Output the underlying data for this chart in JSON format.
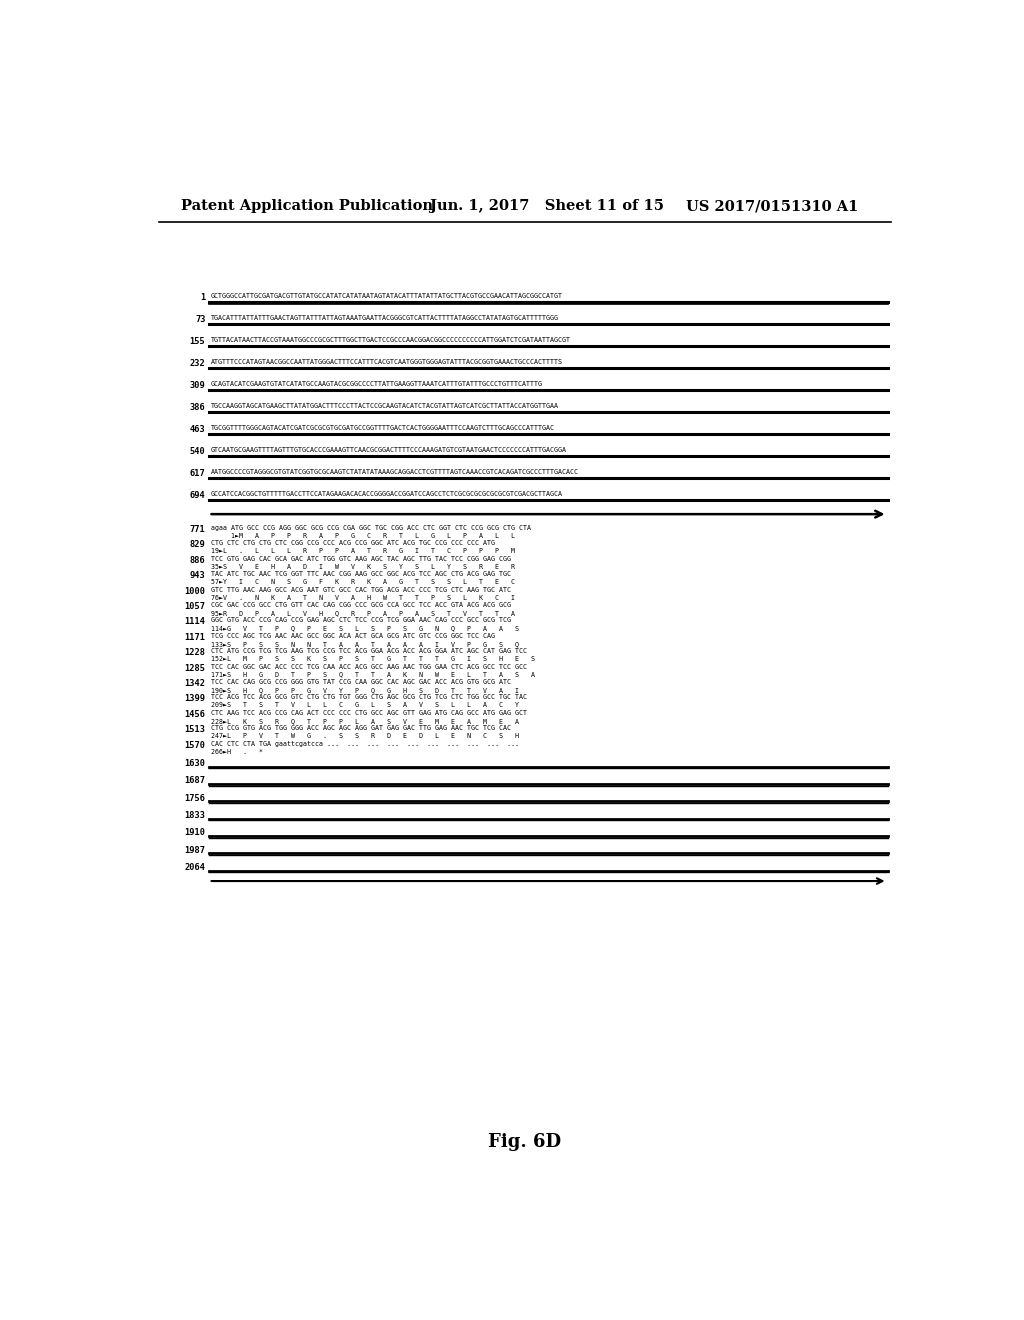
{
  "header_left": "Patent Application Publication",
  "header_center": "Jun. 1, 2017   Sheet 11 of 15",
  "header_right": "US 2017/0151310 A1",
  "figure_label": "Fig. 6D",
  "background_color": "#ffffff",
  "nuc_lines": [
    [
      "1",
      "GCTGGGCCATTGCGATGACGTTGTATGCCATATCATATAATAGTATACATTTATATTATGCTTACGTGCCGAACATTAGCGGCCATGT"
    ],
    [
      "73",
      "TGACATTTATTATTTGAACTAGTTATTTATTAGTAAATGAATTACGGGCGTCATTACTTTTATAGGCCTATATAGTGCATTTTTGGG"
    ],
    [
      "155",
      "TGTTACATAACTTACCGTAAATGGCCCGCGCTTTGGCTTGACTCCGCCCAACGGACGGCCCCCCCCCCATTGGATCTCGATAATTAGCGT"
    ],
    [
      "232",
      "ATGTTTCCCATAGTAACGGCCAATTATGGGACTTTCCATTTCACGTCAATGGGTGGGAGTATTTACGCGGTGAAACTGCCCACTTTTS"
    ],
    [
      "309",
      "GCAGTACATCGAAGTGTATCATATGCCAAGTACGCGGCCCCTTATTGAAGGTTAAATCATTTGTATTTGCCCTGTTTCATTTG"
    ],
    [
      "386",
      "TGCCAAGGTAGCATGAAGCTTATATGGACTTTCCCTTACTCCGCAAGTACATCTACGTATTAGTCATCGCTTATTACCATGGTTGAA"
    ],
    [
      "463",
      "TGCGGTTTTGGGCAGTACATCGATCGCGCGTGCGATGCCGGTTTTGACTCACTGGGGAATTTCCAAGTCTTTGCAGCCCATTTGAC"
    ],
    [
      "540",
      "GTCAATGCGAAGTTTTAGTTTGTGCACCCGAAAGTTCAACGCGGACTTTTCCCAAAGATGTCGTAATGAACTCCCCCCCATTTGACGGA"
    ],
    [
      "617",
      "AATGGCCCCGTAGGGCGTGTATCGGTGCGCAAGTCTATATATAAAGCAGGACCTCGTTTTAGTCAAACCGTCACAGATCGCCCTTTGACACC"
    ],
    [
      "694",
      "GCCATCCACGGCTGTTTTTGACCTTCCATAGAAGACACACCGGGGACCGGATCCAGCCTCTCGCGCGCGCGCGCGTCGACGCTTAGCA"
    ]
  ],
  "coding_lines": [
    [
      "771",
      "agaa ATG GCC CCG AGG GGC GCG CCG CGA GGC TGC CGG ACC CTC GGT CTC CCG GCG CTG CTA",
      false
    ],
    [
      "",
      "     1►M   A   P   P   R   A   P   G   C   R   T   L   G   L   P   A   L   L",
      true
    ],
    [
      "829",
      "CTG CTC CTG CTG CTC CGG CCG CCC ACG CCG GGC ATC ACG TGC CCG CCC CCC ATG",
      false
    ],
    [
      "",
      "19►L   .   L   L   L   R   P   P   A   T   R   G   I   T   C   P   P   P   M",
      true
    ],
    [
      "886",
      "TCC GTG GAG CAC GCA GAC ATC TGG GTC AAG AGC TAC AGC TTG TAC TCC CGG GAG CGG",
      false
    ],
    [
      "",
      "35►S   V   E   H   A   D   I   W   V   K   S   Y   S   L   Y   S   R   E   R",
      true
    ],
    [
      "943",
      "TAC ATC TGC AAC TCG GGT TTC AAC CGG AAG GCC GGC ACG TCC AGC CTG ACG GAG TGC",
      false
    ],
    [
      "",
      "57►Y   I   C   N   S   G   F   K   R   K   A   G   T   S   S   L   T   E   C",
      true
    ],
    [
      "1000",
      "GTC TTG AAC AAG GCC ACG AAT GTC GCC CAC TGG ACG ACC CCC TCG CTC AAG TGC ATC",
      false
    ],
    [
      "",
      "76►V   .   N   K   A   T   N   V   A   H   W   T   T   P   S   L   K   C   I",
      true
    ],
    [
      "1057",
      "CGC GAC CCG GCC CTG GTT CAC CAG CGG CCC GCG CCA GCC TCC ACC GTA ACG ACG GCG",
      false
    ],
    [
      "",
      "95►R   D   P   A   L   V   H   Q   R   P   A   P   A   S   T   V   T   T   A",
      true
    ],
    [
      "1114",
      "GGC GTG ACC CCG CAG CCG GAG AGC CTC TCC CCG TCG GGA AAC CAG CCC GCC GCG TCG",
      false
    ],
    [
      "",
      "114►G   V   T   P   Q   P   E   S   L   S   P   S   G   N   Q   P   A   A   S",
      true
    ],
    [
      "1171",
      "TCG CCC AGC TCG AAC AAC GCC GGC ACA ACT GCA GCG ATC GTC CCG GGC TCC CAG",
      false
    ],
    [
      "",
      "133►S   P   S   S   N   N   T   A   A   T   A   A   A   I   V   P   G   S   Q",
      true
    ],
    [
      "1228",
      "CTC ATG CCG TCG TCG AAG TCG CCG TCC ACG GGA ACG ACC ACG GGA ATC AGC CAT GAG TCC",
      false
    ],
    [
      "",
      "152►L   M   P   S   S   K   S   P   S   T   G   T   T   T   G   I   S   H   E   S",
      true
    ],
    [
      "1285",
      "TCC CAC GGC GAC ACC CCC TCG CAA ACC ACG GCC AAG AAC TGG GAA CTC ACG GCC TCC GCC",
      false
    ],
    [
      "",
      "171►S   H   G   D   T   P   S   Q   T   T   A   K   N   W   E   L   T   A   S   A",
      true
    ],
    [
      "1342",
      "TCC CAC CAG GCG CCG GGG GTG TAT CCG CAA GGC CAC AGC GAC ACC ACG GTG GCG ATC",
      false
    ],
    [
      "",
      "190►S   H   Q   P   P   G   V   Y   P   Q   G   H   S   D   T   T   V   A   I",
      true
    ],
    [
      "1399",
      "TCC ACG TCC ACG GCG GTC CTG CTG TGT GGG CTG AGC GCG CTG TCG CTC TGG GCC TGC TAC",
      false
    ],
    [
      "",
      "209►S   T   S   T   V   L   L   C   G   L   S   A   V   S   L   L   A   C   Y",
      true
    ],
    [
      "1456",
      "CTC AAG TCC ACG CCG CAG ACT CCC CCC CTG GCC AGC GTT GAG ATG CAG GCC ATG GAG GCT",
      false
    ],
    [
      "",
      "228►L   K   S   R   Q   T   P   P   L   A   S   V   E   M   E   A   M   E   A",
      true
    ],
    [
      "1513",
      "CTG CCG GTG ACG TGG GGG ACC AGC AGC AGG GAT GAG GAC TTG GAG AAC TGC TCG CAC",
      false
    ],
    [
      "",
      "247►L   P   V   T   W   G   .   S   S   R   D   E   D   L   E   N   C   S   H",
      true
    ],
    [
      "1570",
      "CAC CTC CTA TGA gaattcgatcca ...  ...  ...  ...  ...  ...  ...  ...  ...  ...",
      false
    ],
    [
      "",
      "266►H   .   *",
      true
    ]
  ],
  "sparse_lines": [
    [
      "1630",
      ""
    ],
    [
      "1687",
      ""
    ],
    [
      "1756",
      ""
    ],
    [
      "1833",
      ""
    ],
    [
      "1910",
      ""
    ],
    [
      "1987",
      ""
    ],
    [
      "2064",
      ""
    ]
  ]
}
